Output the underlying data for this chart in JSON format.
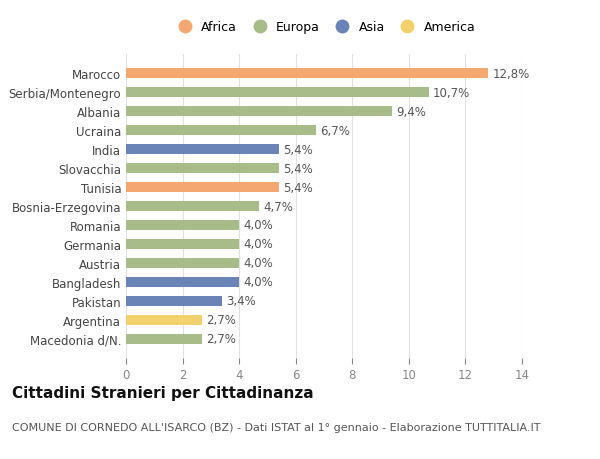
{
  "categories": [
    "Marocco",
    "Serbia/Montenegro",
    "Albania",
    "Ucraina",
    "India",
    "Slovacchia",
    "Tunisia",
    "Bosnia-Erzegovina",
    "Romania",
    "Germania",
    "Austria",
    "Bangladesh",
    "Pakistan",
    "Argentina",
    "Macedonia d/N."
  ],
  "values": [
    12.8,
    10.7,
    9.4,
    6.7,
    5.4,
    5.4,
    5.4,
    4.7,
    4.0,
    4.0,
    4.0,
    4.0,
    3.4,
    2.7,
    2.7
  ],
  "continents": [
    "Africa",
    "Europa",
    "Europa",
    "Europa",
    "Asia",
    "Europa",
    "Africa",
    "Europa",
    "Europa",
    "Europa",
    "Europa",
    "Asia",
    "Asia",
    "America",
    "Europa"
  ],
  "labels": [
    "12,8%",
    "10,7%",
    "9,4%",
    "6,7%",
    "5,4%",
    "5,4%",
    "5,4%",
    "4,7%",
    "4,0%",
    "4,0%",
    "4,0%",
    "4,0%",
    "3,4%",
    "2,7%",
    "2,7%"
  ],
  "colors": {
    "Africa": "#F4A870",
    "Europa": "#A8BC8A",
    "Asia": "#6B84B8",
    "America": "#F2D06B"
  },
  "legend_order": [
    "Africa",
    "Europa",
    "Asia",
    "America"
  ],
  "xlim": [
    0,
    14
  ],
  "xticks": [
    0,
    2,
    4,
    6,
    8,
    10,
    12,
    14
  ],
  "title": "Cittadini Stranieri per Cittadinanza",
  "subtitle": "COMUNE DI CORNEDO ALL'ISARCO (BZ) - Dati ISTAT al 1° gennaio - Elaborazione TUTTITALIA.IT",
  "background_color": "#ffffff",
  "grid_color": "#e0e0e0",
  "label_fontsize": 8.5,
  "tick_fontsize": 8.5,
  "title_fontsize": 11,
  "subtitle_fontsize": 8,
  "bar_label_fontsize": 8.5,
  "bar_height": 0.55
}
